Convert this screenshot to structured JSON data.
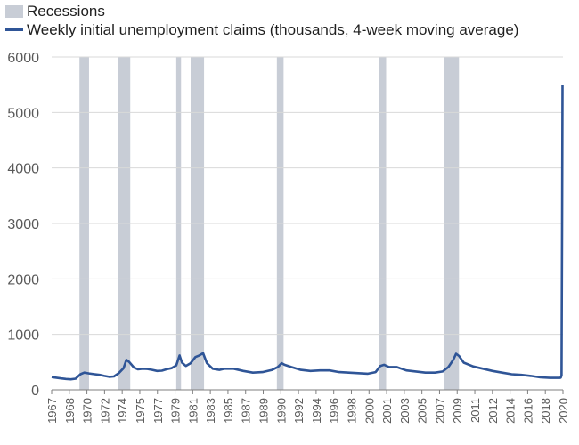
{
  "chart_data": {
    "type": "line",
    "title": "",
    "xlabel": "",
    "ylabel": "",
    "xlim": [
      1967.0,
      2020.35
    ],
    "ylim": [
      0,
      6000
    ],
    "y_ticks": [
      0,
      1000,
      2000,
      3000,
      4000,
      5000,
      6000
    ],
    "x_tick_labels": [
      "1967",
      "1968",
      "1970",
      "1972",
      "1974",
      "1975",
      "1977",
      "1979",
      "1981",
      "1983",
      "1985",
      "1987",
      "1989",
      "1990",
      "1992",
      "1994",
      "1996",
      "1998",
      "2000",
      "2001",
      "2003",
      "2005",
      "2007",
      "2009",
      "2011",
      "2012",
      "2014",
      "2016",
      "2018",
      "2020"
    ],
    "grid": "horizontal",
    "legend_placement": "top-left",
    "colors": {
      "recessions": "#c8cdd6",
      "line": "#2f5597",
      "grid": "#d9d9d9",
      "axis": "#7f7f7f",
      "text": "#595959"
    },
    "recessions": {
      "name": "Recessions",
      "periods": [
        [
          1969.9,
          1970.9
        ],
        [
          1973.9,
          1975.2
        ],
        [
          1980.0,
          1980.5
        ],
        [
          1981.5,
          1982.9
        ],
        [
          1990.5,
          1991.2
        ],
        [
          2001.2,
          2001.9
        ],
        [
          2007.9,
          2009.5
        ]
      ]
    },
    "series": [
      {
        "name": "Weekly initial unemployment claims (thousands, 4-week moving average)",
        "x": [
          1967.0,
          1967.4,
          1968.0,
          1968.5,
          1969.0,
          1969.5,
          1970.0,
          1970.4,
          1970.9,
          1971.5,
          1972.0,
          1972.5,
          1973.0,
          1973.5,
          1974.0,
          1974.5,
          1974.8,
          1975.1,
          1975.6,
          1976.0,
          1976.5,
          1977.0,
          1977.5,
          1978.0,
          1978.5,
          1979.0,
          1979.5,
          1980.0,
          1980.35,
          1980.6,
          1981.0,
          1981.5,
          1982.0,
          1982.4,
          1982.8,
          1983.2,
          1983.8,
          1984.5,
          1985.0,
          1986.0,
          1987.0,
          1988.0,
          1989.0,
          1990.0,
          1990.6,
          1991.0,
          1991.3,
          1992.0,
          1993.0,
          1994.0,
          1995.0,
          1996.0,
          1997.0,
          1998.0,
          1999.0,
          2000.0,
          2000.8,
          2001.3,
          2001.7,
          2002.2,
          2003.0,
          2003.5,
          2004.0,
          2005.0,
          2006.0,
          2007.0,
          2007.8,
          2008.4,
          2008.9,
          2009.2,
          2009.5,
          2010.0,
          2011.0,
          2012.0,
          2013.0,
          2014.0,
          2015.0,
          2016.0,
          2017.0,
          2018.0,
          2019.0,
          2019.8,
          2020.0,
          2020.12,
          2020.2,
          2020.26,
          2020.3
        ],
        "y": [
          230,
          220,
          205,
          195,
          190,
          200,
          280,
          310,
          295,
          280,
          270,
          250,
          235,
          240,
          300,
          390,
          540,
          500,
          400,
          370,
          380,
          375,
          360,
          340,
          345,
          370,
          390,
          440,
          620,
          490,
          430,
          480,
          590,
          620,
          660,
          480,
          380,
          360,
          380,
          380,
          340,
          310,
          320,
          360,
          410,
          480,
          450,
          410,
          360,
          340,
          350,
          350,
          320,
          310,
          300,
          290,
          320,
          430,
          450,
          410,
          410,
          380,
          350,
          330,
          310,
          310,
          330,
          410,
          540,
          650,
          610,
          490,
          420,
          380,
          340,
          310,
          280,
          270,
          250,
          225,
          215,
          215,
          215,
          220,
          260,
          2900,
          5500
        ]
      }
    ]
  }
}
